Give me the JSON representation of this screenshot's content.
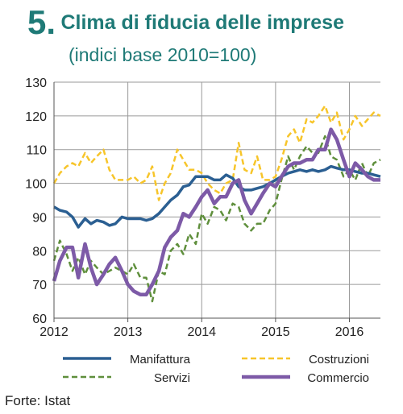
{
  "header": {
    "number": "5.",
    "title": "Clima di fiducia delle imprese",
    "subtitle": "(indici base 2010=100)"
  },
  "source": "Forte: Istat",
  "colors": {
    "title": "#1f7a77",
    "manifattura": "#2b5f92",
    "costruzioni": "#f7c52a",
    "servizi": "#5f8f3c",
    "commercio": "#7d5aa7",
    "grid": "#9a9a9a"
  },
  "chart_data": {
    "type": "line",
    "xlim": [
      2012,
      2016.42
    ],
    "ylim": [
      60,
      130
    ],
    "yticks": [
      60,
      70,
      80,
      90,
      100,
      110,
      120,
      130
    ],
    "xticks": [
      "2012",
      "2013",
      "2014",
      "2015",
      "2016"
    ],
    "grid": true,
    "legend_position": "bottom",
    "series": [
      {
        "name": "Manifattura",
        "key": "manifattura",
        "style": "solid",
        "values": [
          [
            2012.0,
            93
          ],
          [
            2012.08,
            92
          ],
          [
            2012.17,
            91.5
          ],
          [
            2012.25,
            90
          ],
          [
            2012.33,
            87
          ],
          [
            2012.42,
            89.5
          ],
          [
            2012.5,
            88
          ],
          [
            2012.58,
            89
          ],
          [
            2012.67,
            88.5
          ],
          [
            2012.75,
            87.5
          ],
          [
            2012.83,
            88
          ],
          [
            2012.92,
            90
          ],
          [
            2013.0,
            89.5
          ],
          [
            2013.08,
            89.5
          ],
          [
            2013.17,
            89.5
          ],
          [
            2013.25,
            89
          ],
          [
            2013.33,
            89.5
          ],
          [
            2013.42,
            91
          ],
          [
            2013.5,
            93
          ],
          [
            2013.58,
            95
          ],
          [
            2013.67,
            96.5
          ],
          [
            2013.75,
            99
          ],
          [
            2013.83,
            99.5
          ],
          [
            2013.92,
            102
          ],
          [
            2014.0,
            102
          ],
          [
            2014.08,
            102
          ],
          [
            2014.17,
            101
          ],
          [
            2014.25,
            101
          ],
          [
            2014.33,
            102.5
          ],
          [
            2014.42,
            101.5
          ],
          [
            2014.5,
            99
          ],
          [
            2014.58,
            98
          ],
          [
            2014.67,
            98
          ],
          [
            2014.75,
            98.5
          ],
          [
            2014.83,
            99
          ],
          [
            2014.92,
            100
          ],
          [
            2015.0,
            101
          ],
          [
            2015.08,
            102
          ],
          [
            2015.17,
            103
          ],
          [
            2015.25,
            103.5
          ],
          [
            2015.33,
            104
          ],
          [
            2015.42,
            103.5
          ],
          [
            2015.5,
            104
          ],
          [
            2015.58,
            103.5
          ],
          [
            2015.67,
            104
          ],
          [
            2015.75,
            105
          ],
          [
            2015.83,
            104.5
          ],
          [
            2015.92,
            104
          ],
          [
            2016.0,
            104
          ],
          [
            2016.08,
            103.5
          ],
          [
            2016.17,
            103
          ],
          [
            2016.25,
            103
          ],
          [
            2016.33,
            102.5
          ],
          [
            2016.42,
            102
          ]
        ]
      },
      {
        "name": "Costruzioni",
        "key": "costruzioni",
        "style": "dashed",
        "values": [
          [
            2012.0,
            100
          ],
          [
            2012.08,
            103
          ],
          [
            2012.17,
            105
          ],
          [
            2012.25,
            106
          ],
          [
            2012.33,
            105
          ],
          [
            2012.42,
            109
          ],
          [
            2012.5,
            106
          ],
          [
            2012.58,
            108
          ],
          [
            2012.67,
            110
          ],
          [
            2012.75,
            104
          ],
          [
            2012.83,
            101
          ],
          [
            2012.92,
            101
          ],
          [
            2013.0,
            101
          ],
          [
            2013.08,
            102
          ],
          [
            2013.17,
            100
          ],
          [
            2013.25,
            101
          ],
          [
            2013.33,
            105
          ],
          [
            2013.42,
            95
          ],
          [
            2013.5,
            100
          ],
          [
            2013.58,
            103
          ],
          [
            2013.67,
            110
          ],
          [
            2013.75,
            107
          ],
          [
            2013.83,
            104
          ],
          [
            2013.92,
            104
          ],
          [
            2014.0,
            103
          ],
          [
            2014.08,
            100
          ],
          [
            2014.17,
            98
          ],
          [
            2014.25,
            97
          ],
          [
            2014.33,
            100
          ],
          [
            2014.42,
            101
          ],
          [
            2014.5,
            112
          ],
          [
            2014.58,
            104
          ],
          [
            2014.67,
            103
          ],
          [
            2014.75,
            108
          ],
          [
            2014.83,
            101
          ],
          [
            2014.92,
            101
          ],
          [
            2015.0,
            102
          ],
          [
            2015.08,
            107
          ],
          [
            2015.17,
            114
          ],
          [
            2015.25,
            116
          ],
          [
            2015.33,
            112
          ],
          [
            2015.42,
            119
          ],
          [
            2015.5,
            118
          ],
          [
            2015.58,
            120
          ],
          [
            2015.67,
            123
          ],
          [
            2015.75,
            118
          ],
          [
            2015.83,
            121
          ],
          [
            2015.92,
            113
          ],
          [
            2016.0,
            116
          ],
          [
            2016.08,
            120
          ],
          [
            2016.17,
            117
          ],
          [
            2016.25,
            119
          ],
          [
            2016.33,
            121
          ],
          [
            2016.42,
            120
          ]
        ]
      },
      {
        "name": "Servizi",
        "key": "servizi",
        "style": "dashed",
        "values": [
          [
            2012.0,
            77
          ],
          [
            2012.08,
            83
          ],
          [
            2012.17,
            79
          ],
          [
            2012.25,
            74
          ],
          [
            2012.33,
            78
          ],
          [
            2012.42,
            73
          ],
          [
            2012.5,
            77
          ],
          [
            2012.58,
            75
          ],
          [
            2012.67,
            73
          ],
          [
            2012.75,
            74
          ],
          [
            2012.83,
            75
          ],
          [
            2012.92,
            74
          ],
          [
            2013.0,
            73
          ],
          [
            2013.08,
            76
          ],
          [
            2013.17,
            72
          ],
          [
            2013.25,
            72
          ],
          [
            2013.33,
            65
          ],
          [
            2013.42,
            74
          ],
          [
            2013.5,
            73
          ],
          [
            2013.58,
            80
          ],
          [
            2013.67,
            82
          ],
          [
            2013.75,
            79
          ],
          [
            2013.83,
            85
          ],
          [
            2013.92,
            82
          ],
          [
            2014.0,
            91
          ],
          [
            2014.08,
            88
          ],
          [
            2014.17,
            93
          ],
          [
            2014.25,
            92
          ],
          [
            2014.33,
            89
          ],
          [
            2014.42,
            94
          ],
          [
            2014.5,
            93
          ],
          [
            2014.58,
            88
          ],
          [
            2014.67,
            86
          ],
          [
            2014.75,
            88
          ],
          [
            2014.83,
            88
          ],
          [
            2014.92,
            92
          ],
          [
            2015.0,
            94
          ],
          [
            2015.08,
            101
          ],
          [
            2015.17,
            108
          ],
          [
            2015.25,
            104
          ],
          [
            2015.33,
            108
          ],
          [
            2015.42,
            111
          ],
          [
            2015.5,
            109
          ],
          [
            2015.58,
            109
          ],
          [
            2015.67,
            114
          ],
          [
            2015.75,
            108
          ],
          [
            2015.83,
            107
          ],
          [
            2015.92,
            102
          ],
          [
            2016.0,
            104
          ],
          [
            2016.08,
            101
          ],
          [
            2016.17,
            106
          ],
          [
            2016.25,
            102
          ],
          [
            2016.33,
            106
          ],
          [
            2016.42,
            107
          ]
        ]
      },
      {
        "name": "Commercio",
        "key": "commercio",
        "style": "solid",
        "values": [
          [
            2012.0,
            71
          ],
          [
            2012.08,
            77
          ],
          [
            2012.17,
            81
          ],
          [
            2012.25,
            81
          ],
          [
            2012.33,
            72
          ],
          [
            2012.42,
            82
          ],
          [
            2012.5,
            75
          ],
          [
            2012.58,
            70
          ],
          [
            2012.67,
            73
          ],
          [
            2012.75,
            76
          ],
          [
            2012.83,
            78
          ],
          [
            2012.92,
            74
          ],
          [
            2013.0,
            70
          ],
          [
            2013.08,
            68
          ],
          [
            2013.17,
            67
          ],
          [
            2013.25,
            67
          ],
          [
            2013.33,
            70
          ],
          [
            2013.42,
            74
          ],
          [
            2013.5,
            81
          ],
          [
            2013.58,
            84
          ],
          [
            2013.67,
            86
          ],
          [
            2013.75,
            91
          ],
          [
            2013.83,
            90
          ],
          [
            2013.92,
            93
          ],
          [
            2014.0,
            96
          ],
          [
            2014.08,
            98
          ],
          [
            2014.17,
            94
          ],
          [
            2014.25,
            96
          ],
          [
            2014.33,
            96
          ],
          [
            2014.42,
            100
          ],
          [
            2014.5,
            101
          ],
          [
            2014.58,
            95
          ],
          [
            2014.67,
            91
          ],
          [
            2014.75,
            94
          ],
          [
            2014.83,
            97
          ],
          [
            2014.92,
            100
          ],
          [
            2015.0,
            99
          ],
          [
            2015.08,
            102
          ],
          [
            2015.17,
            105
          ],
          [
            2015.25,
            106
          ],
          [
            2015.33,
            106
          ],
          [
            2015.42,
            107
          ],
          [
            2015.5,
            107
          ],
          [
            2015.58,
            110
          ],
          [
            2015.67,
            110
          ],
          [
            2015.75,
            116
          ],
          [
            2015.83,
            113
          ],
          [
            2015.92,
            107
          ],
          [
            2016.0,
            102
          ],
          [
            2016.08,
            106
          ],
          [
            2016.17,
            104
          ],
          [
            2016.25,
            102
          ],
          [
            2016.33,
            101
          ],
          [
            2016.42,
            101
          ]
        ]
      }
    ]
  }
}
